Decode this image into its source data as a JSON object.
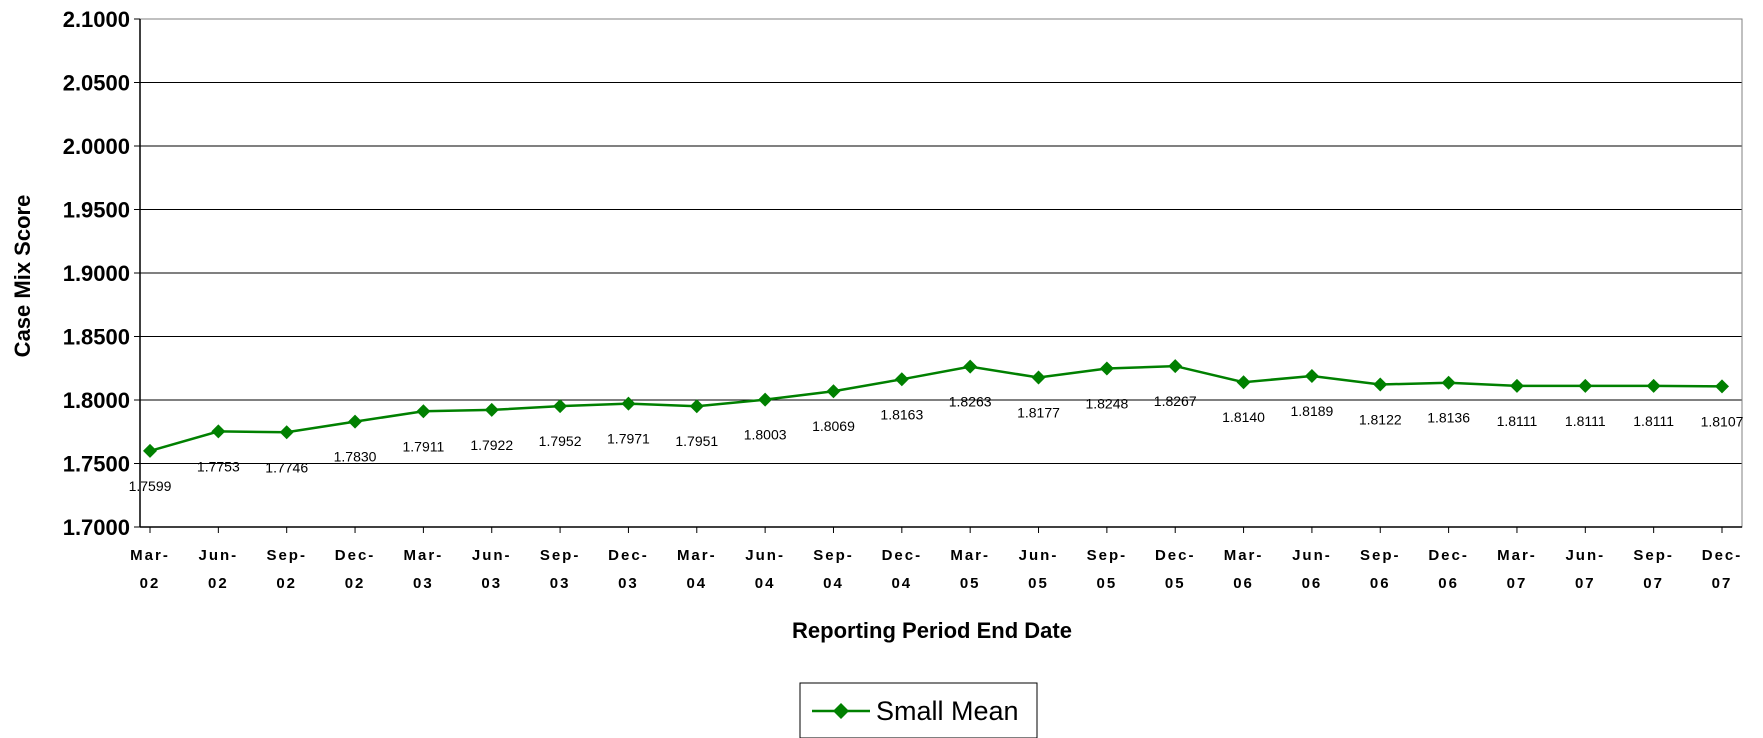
{
  "chart_data": {
    "type": "line",
    "xlabel": "Reporting Period End Date",
    "ylabel": "Case Mix Score",
    "ylim": [
      1.7,
      2.1
    ],
    "y_ticks": [
      "2.1000",
      "2.0500",
      "2.0000",
      "1.9500",
      "1.9000",
      "1.8500",
      "1.8000",
      "1.7500",
      "1.7000"
    ],
    "grid": true,
    "legend_position": "bottom-center",
    "categories": [
      [
        "Mar-",
        "02"
      ],
      [
        "Jun-",
        "02"
      ],
      [
        "Sep-",
        "02"
      ],
      [
        "Dec-",
        "02"
      ],
      [
        "Mar-",
        "03"
      ],
      [
        "Jun-",
        "03"
      ],
      [
        "Sep-",
        "03"
      ],
      [
        "Dec-",
        "03"
      ],
      [
        "Mar-",
        "04"
      ],
      [
        "Jun-",
        "04"
      ],
      [
        "Sep-",
        "04"
      ],
      [
        "Dec-",
        "04"
      ],
      [
        "Mar-",
        "05"
      ],
      [
        "Jun-",
        "05"
      ],
      [
        "Sep-",
        "05"
      ],
      [
        "Dec-",
        "05"
      ],
      [
        "Mar-",
        "06"
      ],
      [
        "Jun-",
        "06"
      ],
      [
        "Sep-",
        "06"
      ],
      [
        "Dec-",
        "06"
      ],
      [
        "Mar-",
        "07"
      ],
      [
        "Jun-",
        "07"
      ],
      [
        "Sep-",
        "07"
      ],
      [
        "Dec-",
        "07"
      ]
    ],
    "series": [
      {
        "name": "Small Mean",
        "color": "#008000",
        "marker": "diamond",
        "values": [
          1.7599,
          1.7753,
          1.7746,
          1.783,
          1.7911,
          1.7922,
          1.7952,
          1.7971,
          1.7951,
          1.8003,
          1.8069,
          1.8163,
          1.8263,
          1.8177,
          1.8248,
          1.8267,
          1.814,
          1.8189,
          1.8122,
          1.8136,
          1.8111,
          1.8111,
          1.8111,
          1.8107
        ],
        "labels": [
          "1.7599",
          "1.7753",
          "1.7746",
          "1.7830",
          "1.7911",
          "1.7922",
          "1.7952",
          "1.7971",
          "1.7951",
          "1.8003",
          "1.8069",
          "1.8163",
          "1.8263",
          "1.8177",
          "1.8248",
          "1.8267",
          "1.8140",
          "1.8189",
          "1.8122",
          "1.8136",
          "1.8111",
          "1.8111",
          "1.8111",
          "1.8107"
        ]
      }
    ]
  }
}
